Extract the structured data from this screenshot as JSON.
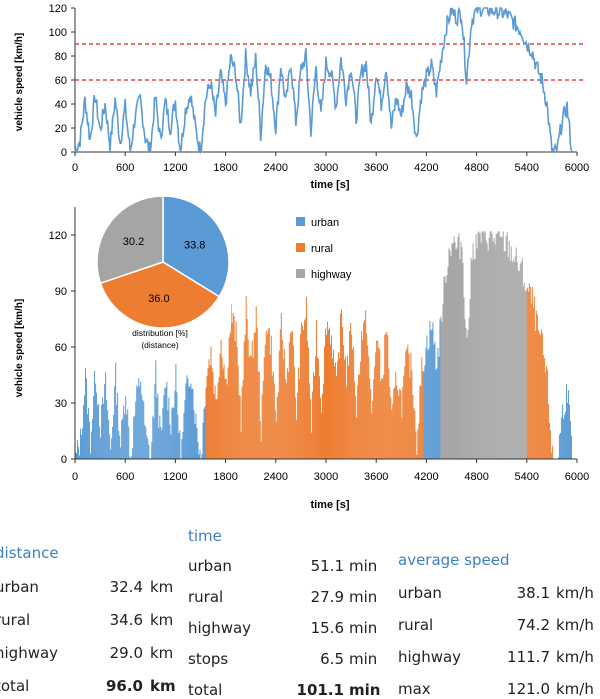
{
  "chart_data": [
    {
      "type": "line",
      "ylabel": "vehicle speed [km/h]",
      "xlabel": "time [s]",
      "xlim": [
        0,
        6000
      ],
      "ylim": [
        0,
        120
      ],
      "xticks": [
        "0",
        "600",
        "1200",
        "1800",
        "2400",
        "3000",
        "3600",
        "4200",
        "4800",
        "5400",
        "6000"
      ],
      "yticks": [
        "0",
        "20",
        "40",
        "60",
        "80",
        "100",
        "120"
      ],
      "thresholds": [
        60,
        90
      ],
      "line_color": "#5b9bd5",
      "threshold_color": "#e02020",
      "grid": false,
      "speed_profile": [
        [
          0,
          0
        ],
        [
          60,
          10
        ],
        [
          120,
          44
        ],
        [
          180,
          10
        ],
        [
          240,
          47
        ],
        [
          300,
          18
        ],
        [
          360,
          40
        ],
        [
          420,
          5
        ],
        [
          480,
          44
        ],
        [
          540,
          8
        ],
        [
          600,
          38
        ],
        [
          660,
          0
        ],
        [
          720,
          30
        ],
        [
          780,
          44
        ],
        [
          840,
          12
        ],
        [
          900,
          0
        ],
        [
          960,
          46
        ],
        [
          1020,
          10
        ],
        [
          1080,
          42
        ],
        [
          1140,
          20
        ],
        [
          1200,
          43
        ],
        [
          1260,
          0
        ],
        [
          1320,
          35
        ],
        [
          1380,
          48
        ],
        [
          1440,
          20
        ],
        [
          1500,
          0
        ],
        [
          1560,
          44
        ],
        [
          1620,
          58
        ],
        [
          1680,
          30
        ],
        [
          1740,
          65
        ],
        [
          1800,
          40
        ],
        [
          1860,
          78
        ],
        [
          1920,
          66
        ],
        [
          1980,
          22
        ],
        [
          2040,
          80
        ],
        [
          2100,
          50
        ],
        [
          2160,
          78
        ],
        [
          2220,
          15
        ],
        [
          2280,
          75
        ],
        [
          2340,
          60
        ],
        [
          2400,
          20
        ],
        [
          2460,
          72
        ],
        [
          2520,
          40
        ],
        [
          2580,
          75
        ],
        [
          2640,
          25
        ],
        [
          2700,
          68
        ],
        [
          2760,
          80
        ],
        [
          2820,
          18
        ],
        [
          2880,
          70
        ],
        [
          2940,
          30
        ],
        [
          3000,
          74
        ],
        [
          3060,
          66
        ],
        [
          3120,
          38
        ],
        [
          3180,
          78
        ],
        [
          3240,
          45
        ],
        [
          3300,
          72
        ],
        [
          3360,
          28
        ],
        [
          3420,
          66
        ],
        [
          3480,
          74
        ],
        [
          3540,
          22
        ],
        [
          3600,
          68
        ],
        [
          3660,
          40
        ],
        [
          3720,
          72
        ],
        [
          3780,
          20
        ],
        [
          3840,
          45
        ],
        [
          3900,
          30
        ],
        [
          3960,
          55
        ],
        [
          4020,
          48
        ],
        [
          4080,
          10
        ],
        [
          4140,
          48
        ],
        [
          4200,
          62
        ],
        [
          4260,
          72
        ],
        [
          4320,
          50
        ],
        [
          4380,
          80
        ],
        [
          4440,
          105
        ],
        [
          4500,
          118
        ],
        [
          4560,
          112
        ],
        [
          4620,
          116
        ],
        [
          4680,
          60
        ],
        [
          4740,
          110
        ],
        [
          4800,
          118
        ],
        [
          4860,
          120
        ],
        [
          4920,
          119
        ],
        [
          4980,
          118
        ],
        [
          5040,
          118
        ],
        [
          5100,
          116
        ],
        [
          5160,
          115
        ],
        [
          5220,
          110
        ],
        [
          5280,
          105
        ],
        [
          5340,
          100
        ],
        [
          5400,
          90
        ],
        [
          5460,
          85
        ],
        [
          5520,
          70
        ],
        [
          5580,
          60
        ],
        [
          5640,
          40
        ],
        [
          5700,
          0
        ],
        [
          5760,
          0
        ],
        [
          5820,
          25
        ],
        [
          5880,
          38
        ],
        [
          5940,
          0
        ]
      ]
    },
    {
      "type": "bar",
      "ylabel": "vehicle speed [km/h]",
      "xlabel": "time [s]",
      "xlim": [
        0,
        6000
      ],
      "ylim": [
        0,
        135
      ],
      "xticks": [
        "0",
        "600",
        "1200",
        "1800",
        "2400",
        "3000",
        "3600",
        "4200",
        "4800",
        "5400",
        "6000"
      ],
      "yticks": [
        "0",
        "30",
        "60",
        "90",
        "120"
      ],
      "legend": [
        "urban",
        "rural",
        "highway"
      ],
      "legend_placement": "top-right",
      "colors": {
        "urban": "#5b9bd5",
        "rural": "#ed7d31",
        "highway": "#a5a5a5"
      },
      "segments": [
        {
          "category": "urban",
          "start": 0,
          "end": 1560
        },
        {
          "category": "rural",
          "start": 1560,
          "end": 4160
        },
        {
          "category": "urban",
          "start": 4160,
          "end": 4360
        },
        {
          "category": "highway",
          "start": 4360,
          "end": 5400
        },
        {
          "category": "rural",
          "start": 5400,
          "end": 5760
        },
        {
          "category": "urban",
          "start": 5760,
          "end": 5940
        }
      ]
    },
    {
      "type": "pie",
      "caption_line1": "distribution [%]",
      "caption_line2": "(distance)",
      "slices": [
        {
          "name": "urban",
          "value": 33.8,
          "label": "33.8"
        },
        {
          "name": "rural",
          "value": 36.0,
          "label": "36.0"
        },
        {
          "name": "highway",
          "value": 30.2,
          "label": "30.2"
        }
      ]
    }
  ],
  "tables": {
    "distance": {
      "title": "distance",
      "rows": [
        {
          "label": "urban",
          "value": "32.4",
          "unit": "km"
        },
        {
          "label": "rural",
          "value": "34.6",
          "unit": "km"
        },
        {
          "label": "highway",
          "value": "29.0",
          "unit": "km"
        },
        {
          "label": "total",
          "value": "96.0",
          "unit": "km"
        }
      ]
    },
    "time": {
      "title": "time",
      "rows": [
        {
          "label": "urban",
          "value": "51.1",
          "unit": "min"
        },
        {
          "label": "rural",
          "value": "27.9",
          "unit": "min"
        },
        {
          "label": "highway",
          "value": "15.6",
          "unit": "min"
        },
        {
          "label": "stops",
          "value": "6.5",
          "unit": "min"
        },
        {
          "label": "total",
          "value": "101.1",
          "unit": "min"
        }
      ]
    },
    "average_speed": {
      "title": "average speed",
      "rows": [
        {
          "label": "urban",
          "value": "38.1",
          "unit": "km/h"
        },
        {
          "label": "rural",
          "value": "74.2",
          "unit": "km/h"
        },
        {
          "label": "highway",
          "value": "111.7",
          "unit": "km/h"
        },
        {
          "label": "max",
          "value": "121.0",
          "unit": "km/h"
        }
      ]
    }
  }
}
